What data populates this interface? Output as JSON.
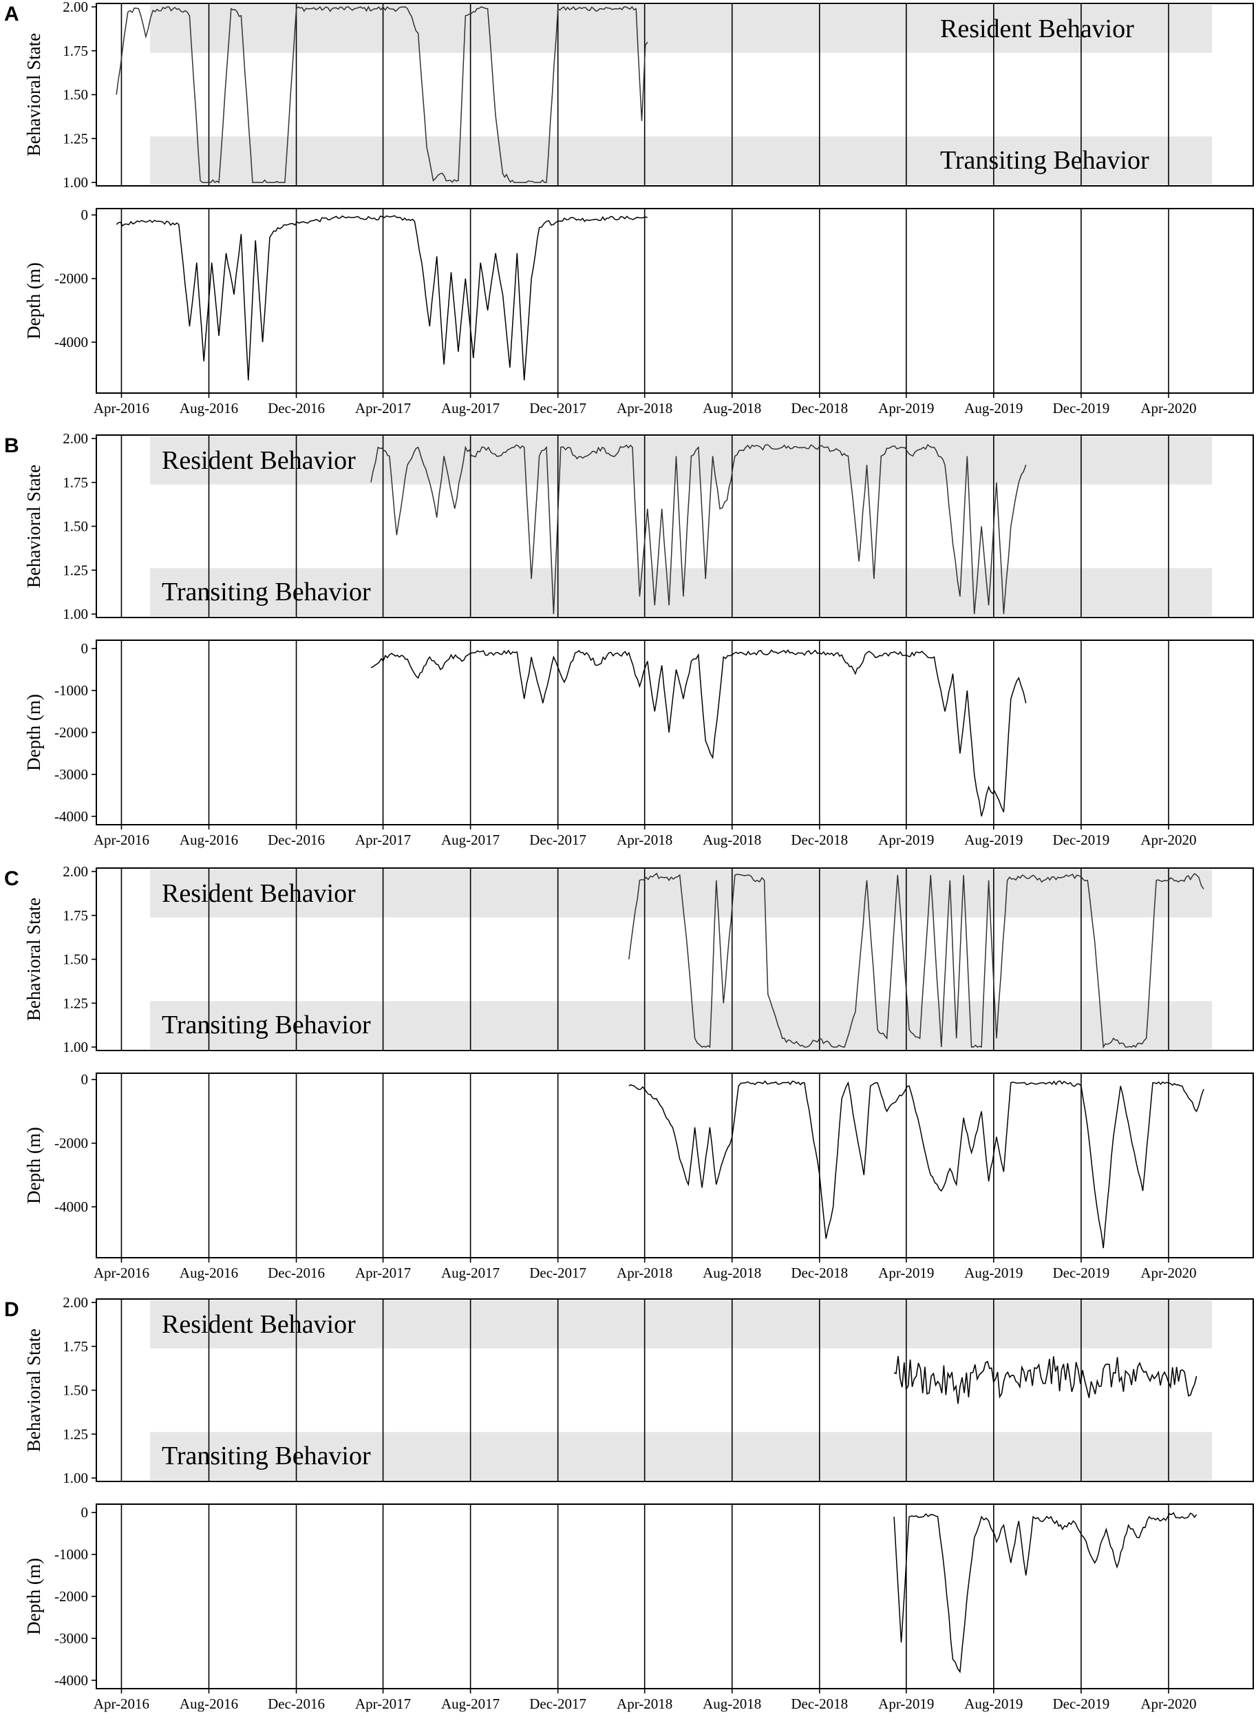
{
  "figure": {
    "x_tick_labels": [
      "Apr-2016",
      "Aug-2016",
      "Dec-2016",
      "Apr-2017",
      "Aug-2017",
      "Dec-2017",
      "Apr-2018",
      "Aug-2018",
      "Dec-2018",
      "Apr-2019",
      "Aug-2019",
      "Dec-2019",
      "Apr-2020"
    ],
    "behavior_ylabel": "Behavioral State",
    "depth_ylabel": "Depth (m)",
    "resident_label": "Resident Behavior",
    "transiting_label": "Transiting Behavior",
    "band_color": "#e6e6e6",
    "line_color": "#000000"
  },
  "chart_data": [
    {
      "panel": "A",
      "type": "line",
      "label_side": "right",
      "behavior": {
        "ylabel": "Behavioral State",
        "ylim": [
          1.0,
          2.0
        ],
        "yticks": [
          "1.00",
          "1.25",
          "1.50",
          "1.75",
          "2.00"
        ],
        "bands": [
          {
            "label": "Resident Behavior",
            "range": [
              1.75,
              2.0
            ]
          },
          {
            "label": "Transiting Behavior",
            "range": [
              1.0,
              1.25
            ]
          }
        ],
        "x": [
          "2016-03-25",
          "2016-04-10",
          "2016-04-25",
          "2016-05-05",
          "2016-05-15",
          "2016-06-01",
          "2016-06-20",
          "2016-07-05",
          "2016-07-20",
          "2016-08-01",
          "2016-08-15",
          "2016-09-01",
          "2016-09-15",
          "2016-10-01",
          "2016-10-15",
          "2016-11-01",
          "2016-11-15",
          "2016-12-01",
          "2016-12-20",
          "2017-01-20",
          "2017-02-20",
          "2017-03-20",
          "2017-04-10",
          "2017-05-05",
          "2017-05-20",
          "2017-06-01",
          "2017-06-10",
          "2017-06-20",
          "2017-07-01",
          "2017-07-15",
          "2017-07-25",
          "2017-08-10",
          "2017-08-25",
          "2017-09-05",
          "2017-09-15",
          "2017-10-01",
          "2017-10-15",
          "2017-11-01",
          "2017-11-15",
          "2017-12-01",
          "2017-12-20",
          "2018-01-20",
          "2018-02-20",
          "2018-03-20",
          "2018-03-28",
          "2018-04-02",
          "2018-04-05"
        ],
        "y": [
          1.5,
          1.97,
          1.99,
          1.83,
          1.98,
          1.99,
          1.99,
          1.95,
          1.01,
          1.0,
          1.0,
          1.99,
          1.95,
          1.0,
          1.0,
          1.0,
          1.0,
          1.99,
          1.99,
          1.99,
          1.99,
          1.99,
          1.99,
          1.99,
          1.85,
          1.2,
          1.01,
          1.05,
          1.01,
          1.01,
          1.95,
          1.99,
          1.99,
          1.38,
          1.05,
          1.0,
          1.0,
          1.0,
          1.0,
          1.99,
          1.99,
          1.99,
          1.99,
          1.99,
          1.35,
          1.78,
          1.8
        ]
      },
      "depth": {
        "ylabel": "Depth (m)",
        "ylim": [
          -5600,
          200
        ],
        "yticks": [
          0,
          -2000,
          -4000
        ],
        "x": [
          "2016-03-25",
          "2016-04-20",
          "2016-05-20",
          "2016-06-20",
          "2016-07-05",
          "2016-07-15",
          "2016-07-25",
          "2016-08-05",
          "2016-08-15",
          "2016-08-25",
          "2016-09-05",
          "2016-09-15",
          "2016-09-25",
          "2016-10-05",
          "2016-10-15",
          "2016-10-25",
          "2016-11-05",
          "2016-11-20",
          "2016-12-20",
          "2017-01-20",
          "2017-02-20",
          "2017-03-20",
          "2017-04-20",
          "2017-05-15",
          "2017-05-25",
          "2017-06-05",
          "2017-06-15",
          "2017-06-25",
          "2017-07-05",
          "2017-07-15",
          "2017-07-25",
          "2017-08-05",
          "2017-08-15",
          "2017-08-25",
          "2017-09-05",
          "2017-09-15",
          "2017-09-25",
          "2017-10-05",
          "2017-10-15",
          "2017-10-25",
          "2017-11-05",
          "2017-11-15",
          "2017-11-25",
          "2017-12-10",
          "2018-01-10",
          "2018-02-10",
          "2018-03-10",
          "2018-04-05"
        ],
        "y": [
          -300,
          -250,
          -200,
          -300,
          -3500,
          -1500,
          -4600,
          -1500,
          -3800,
          -1200,
          -2500,
          -600,
          -5200,
          -800,
          -4000,
          -700,
          -400,
          -300,
          -200,
          -100,
          -80,
          -100,
          -80,
          -200,
          -1500,
          -3500,
          -1300,
          -4700,
          -1800,
          -4300,
          -2000,
          -4500,
          -1500,
          -3000,
          -1200,
          -2500,
          -4800,
          -1200,
          -5200,
          -2000,
          -400,
          -200,
          -300,
          -100,
          -150,
          -100,
          -100,
          -80
        ]
      }
    },
    {
      "panel": "B",
      "type": "line",
      "label_side": "left",
      "behavior": {
        "ylabel": "Behavioral State",
        "ylim": [
          1.0,
          2.0
        ],
        "yticks": [
          "1.00",
          "1.25",
          "1.50",
          "1.75",
          "2.00"
        ],
        "bands": [
          {
            "label": "Resident Behavior",
            "range": [
              1.75,
              2.0
            ]
          },
          {
            "label": "Transiting Behavior",
            "range": [
              1.0,
              1.25
            ]
          }
        ],
        "x": [
          "2017-03-15",
          "2017-03-25",
          "2017-04-10",
          "2017-04-20",
          "2017-05-05",
          "2017-05-20",
          "2017-06-05",
          "2017-06-15",
          "2017-06-25",
          "2017-07-10",
          "2017-07-25",
          "2017-08-05",
          "2017-08-20",
          "2017-09-10",
          "2017-10-01",
          "2017-10-15",
          "2017-10-25",
          "2017-11-05",
          "2017-11-15",
          "2017-11-25",
          "2017-12-05",
          "2017-12-15",
          "2017-12-25",
          "2018-01-10",
          "2018-02-01",
          "2018-02-15",
          "2018-03-01",
          "2018-03-15",
          "2018-03-25",
          "2018-04-05",
          "2018-04-15",
          "2018-04-25",
          "2018-05-05",
          "2018-05-15",
          "2018-05-25",
          "2018-06-05",
          "2018-06-15",
          "2018-06-25",
          "2018-07-05",
          "2018-07-15",
          "2018-07-25",
          "2018-08-05",
          "2018-08-20",
          "2018-09-10",
          "2018-10-10",
          "2018-11-10",
          "2018-12-10",
          "2019-01-10",
          "2019-01-25",
          "2019-02-05",
          "2019-02-15",
          "2019-02-25",
          "2019-03-10",
          "2019-03-25",
          "2019-04-10",
          "2019-04-25",
          "2019-05-10",
          "2019-05-25",
          "2019-06-05",
          "2019-06-15",
          "2019-06-25",
          "2019-07-05",
          "2019-07-15",
          "2019-07-25",
          "2019-08-05",
          "2019-08-15",
          "2019-08-25",
          "2019-09-05",
          "2019-09-15"
        ],
        "y": [
          1.75,
          1.95,
          1.9,
          1.45,
          1.85,
          1.95,
          1.75,
          1.55,
          1.9,
          1.6,
          1.95,
          1.9,
          1.95,
          1.9,
          1.95,
          1.95,
          1.2,
          1.9,
          1.95,
          1.0,
          1.95,
          1.95,
          1.9,
          1.9,
          1.95,
          1.9,
          1.95,
          1.95,
          1.1,
          1.6,
          1.05,
          1.6,
          1.05,
          1.9,
          1.1,
          1.9,
          1.95,
          1.2,
          1.9,
          1.6,
          1.65,
          1.9,
          1.95,
          1.95,
          1.95,
          1.95,
          1.95,
          1.9,
          1.3,
          1.85,
          1.2,
          1.9,
          1.95,
          1.95,
          1.9,
          1.95,
          1.95,
          1.85,
          1.4,
          1.1,
          1.9,
          1.0,
          1.5,
          1.05,
          1.75,
          1.0,
          1.5,
          1.75,
          1.85
        ]
      },
      "depth": {
        "ylabel": "Depth (m)",
        "ylim": [
          -4200,
          200
        ],
        "yticks": [
          0,
          -1000,
          -2000,
          -3000,
          -4000
        ],
        "x": [
          "2017-03-15",
          "2017-04-10",
          "2017-05-05",
          "2017-05-20",
          "2017-06-05",
          "2017-06-20",
          "2017-07-05",
          "2017-07-20",
          "2017-08-05",
          "2017-09-05",
          "2017-10-05",
          "2017-10-15",
          "2017-10-25",
          "2017-11-10",
          "2017-11-25",
          "2017-12-10",
          "2017-12-25",
          "2018-01-10",
          "2018-01-25",
          "2018-02-10",
          "2018-02-25",
          "2018-03-10",
          "2018-03-25",
          "2018-04-05",
          "2018-04-15",
          "2018-04-25",
          "2018-05-05",
          "2018-05-15",
          "2018-05-25",
          "2018-06-05",
          "2018-06-15",
          "2018-06-25",
          "2018-07-05",
          "2018-07-20",
          "2018-08-01",
          "2018-08-15",
          "2018-09-01",
          "2018-10-01",
          "2018-11-01",
          "2018-12-01",
          "2019-01-01",
          "2019-01-20",
          "2019-02-05",
          "2019-02-20",
          "2019-03-10",
          "2019-04-01",
          "2019-04-20",
          "2019-05-10",
          "2019-05-25",
          "2019-06-05",
          "2019-06-15",
          "2019-06-25",
          "2019-07-05",
          "2019-07-15",
          "2019-07-25",
          "2019-08-05",
          "2019-08-15",
          "2019-08-25",
          "2019-09-05",
          "2019-09-15"
        ],
        "y": [
          -450,
          -150,
          -250,
          -700,
          -200,
          -500,
          -150,
          -300,
          -100,
          -100,
          -80,
          -1200,
          -200,
          -1300,
          -200,
          -800,
          -100,
          -100,
          -400,
          -100,
          -150,
          -100,
          -900,
          -300,
          -1500,
          -400,
          -2000,
          -500,
          -1200,
          -300,
          -150,
          -2200,
          -2600,
          -200,
          -150,
          -100,
          -100,
          -80,
          -100,
          -100,
          -150,
          -600,
          -100,
          -200,
          -100,
          -150,
          -100,
          -200,
          -1500,
          -600,
          -2500,
          -1000,
          -3000,
          -4000,
          -3300,
          -3500,
          -3900,
          -1200,
          -700,
          -1300
        ]
      }
    },
    {
      "panel": "C",
      "type": "line",
      "label_side": "left",
      "behavior": {
        "ylabel": "Behavioral State",
        "ylim": [
          1.0,
          2.0
        ],
        "yticks": [
          "1.00",
          "1.25",
          "1.50",
          "1.75",
          "2.00"
        ],
        "bands": [
          {
            "label": "Resident Behavior",
            "range": [
              1.75,
              2.0
            ]
          },
          {
            "label": "Transiting Behavior",
            "range": [
              1.0,
              1.25
            ]
          }
        ],
        "x": [
          "2018-03-10",
          "2018-03-25",
          "2018-04-15",
          "2018-05-05",
          "2018-05-20",
          "2018-06-01",
          "2018-06-10",
          "2018-06-20",
          "2018-07-01",
          "2018-07-10",
          "2018-07-20",
          "2018-08-05",
          "2018-08-15",
          "2018-08-25",
          "2018-09-05",
          "2018-09-15",
          "2018-09-20",
          "2018-10-10",
          "2018-11-10",
          "2018-12-01",
          "2018-12-20",
          "2019-01-05",
          "2019-01-20",
          "2019-02-05",
          "2019-02-20",
          "2019-03-05",
          "2019-03-20",
          "2019-04-05",
          "2019-04-20",
          "2019-05-05",
          "2019-05-20",
          "2019-06-01",
          "2019-06-10",
          "2019-06-20",
          "2019-07-01",
          "2019-07-15",
          "2019-07-25",
          "2019-08-05",
          "2019-08-20",
          "2019-09-10",
          "2019-10-10",
          "2019-11-10",
          "2019-12-10",
          "2019-12-20",
          "2020-01-01",
          "2020-01-15",
          "2020-02-01",
          "2020-02-15",
          "2020-03-01",
          "2020-03-15",
          "2020-04-01",
          "2020-04-20",
          "2020-05-10",
          "2020-05-20"
        ],
        "y": [
          1.5,
          1.95,
          1.98,
          1.95,
          1.98,
          1.5,
          1.05,
          1.0,
          1.0,
          1.95,
          1.25,
          1.98,
          1.98,
          1.98,
          1.95,
          1.95,
          1.3,
          1.05,
          1.0,
          1.05,
          1.0,
          1.0,
          1.2,
          1.95,
          1.1,
          1.05,
          1.98,
          1.1,
          1.05,
          1.98,
          1.0,
          1.95,
          1.05,
          1.98,
          1.0,
          1.0,
          1.95,
          1.05,
          1.95,
          1.98,
          1.95,
          1.98,
          1.95,
          1.6,
          1.0,
          1.05,
          1.0,
          1.0,
          1.05,
          1.95,
          1.95,
          1.95,
          1.98,
          1.9
        ]
      },
      "depth": {
        "ylabel": "Depth (m)",
        "ylim": [
          -5600,
          200
        ],
        "yticks": [
          0,
          -2000,
          -4000
        ],
        "x": [
          "2018-03-10",
          "2018-04-01",
          "2018-04-20",
          "2018-05-10",
          "2018-05-20",
          "2018-06-01",
          "2018-06-10",
          "2018-06-20",
          "2018-07-01",
          "2018-07-10",
          "2018-07-20",
          "2018-08-01",
          "2018-08-10",
          "2018-08-20",
          "2018-08-25",
          "2018-09-10",
          "2018-10-10",
          "2018-11-10",
          "2018-11-20",
          "2018-12-01",
          "2018-12-10",
          "2018-12-20",
          "2019-01-01",
          "2019-01-10",
          "2019-01-20",
          "2019-02-01",
          "2019-02-10",
          "2019-02-20",
          "2019-03-05",
          "2019-03-20",
          "2019-04-05",
          "2019-04-20",
          "2019-05-05",
          "2019-05-20",
          "2019-06-01",
          "2019-06-10",
          "2019-06-20",
          "2019-07-01",
          "2019-07-15",
          "2019-07-25",
          "2019-08-05",
          "2019-08-15",
          "2019-08-25",
          "2019-09-10",
          "2019-10-10",
          "2019-11-10",
          "2019-12-01",
          "2019-12-10",
          "2019-12-20",
          "2020-01-01",
          "2020-01-15",
          "2020-01-25",
          "2020-02-10",
          "2020-02-25",
          "2020-03-10",
          "2020-04-01",
          "2020-04-20",
          "2020-05-10",
          "2020-05-20"
        ],
        "y": [
          -200,
          -300,
          -700,
          -1500,
          -2500,
          -3300,
          -1500,
          -3400,
          -1500,
          -3300,
          -2500,
          -1800,
          -200,
          -100,
          -100,
          -100,
          -100,
          -100,
          -1500,
          -3000,
          -5000,
          -4000,
          -600,
          -100,
          -1500,
          -3000,
          -200,
          -100,
          -1000,
          -600,
          -200,
          -1500,
          -3000,
          -3500,
          -2800,
          -3300,
          -1200,
          -2300,
          -1000,
          -3200,
          -1800,
          -2900,
          -100,
          -100,
          -100,
          -100,
          -200,
          -1500,
          -3500,
          -5300,
          -1800,
          -200,
          -2000,
          -3500,
          -100,
          -100,
          -200,
          -1000,
          -300
        ]
      }
    },
    {
      "panel": "D",
      "type": "line",
      "label_side": "left",
      "behavior": {
        "ylabel": "Behavioral State",
        "ylim": [
          1.0,
          2.0
        ],
        "yticks": [
          "1.00",
          "1.25",
          "1.50",
          "1.75",
          "2.00"
        ],
        "bands": [
          {
            "label": "Resident Behavior",
            "range": [
              1.75,
              2.0
            ]
          },
          {
            "label": "Transiting Behavior",
            "range": [
              1.0,
              1.25
            ]
          }
        ],
        "noise_amplitude": 0.1,
        "x": [
          "2019-03-15",
          "2019-04-15",
          "2019-05-15",
          "2019-06-15",
          "2019-07-15",
          "2019-08-15",
          "2019-09-15",
          "2019-10-15",
          "2019-11-15",
          "2019-12-15",
          "2020-01-15",
          "2020-02-15",
          "2020-03-15",
          "2020-04-15",
          "2020-05-10"
        ],
        "y": [
          1.6,
          1.58,
          1.55,
          1.52,
          1.6,
          1.55,
          1.55,
          1.6,
          1.58,
          1.55,
          1.6,
          1.55,
          1.58,
          1.55,
          1.58
        ]
      },
      "depth": {
        "ylabel": "Depth (m)",
        "ylim": [
          -4200,
          200
        ],
        "yticks": [
          0,
          -1000,
          -2000,
          -3000,
          -4000
        ],
        "x": [
          "2019-03-15",
          "2019-03-25",
          "2019-04-05",
          "2019-04-15",
          "2019-04-25",
          "2019-05-05",
          "2019-05-15",
          "2019-05-25",
          "2019-06-05",
          "2019-06-15",
          "2019-06-25",
          "2019-07-05",
          "2019-07-15",
          "2019-07-25",
          "2019-08-05",
          "2019-08-15",
          "2019-08-25",
          "2019-09-05",
          "2019-09-15",
          "2019-09-25",
          "2019-10-05",
          "2019-10-20",
          "2019-11-05",
          "2019-11-20",
          "2019-12-05",
          "2019-12-20",
          "2020-01-05",
          "2020-01-20",
          "2020-02-05",
          "2020-02-20",
          "2020-03-05",
          "2020-03-20",
          "2020-04-05",
          "2020-04-20",
          "2020-05-10"
        ],
        "y": [
          -100,
          -3100,
          -100,
          -80,
          -100,
          -50,
          -100,
          -1500,
          -3500,
          -3800,
          -2000,
          -600,
          -100,
          -200,
          -700,
          -300,
          -1200,
          -200,
          -1500,
          -100,
          -200,
          -100,
          -400,
          -200,
          -600,
          -1200,
          -400,
          -1300,
          -300,
          -600,
          -100,
          -200,
          -50,
          -100,
          -50
        ]
      }
    }
  ]
}
